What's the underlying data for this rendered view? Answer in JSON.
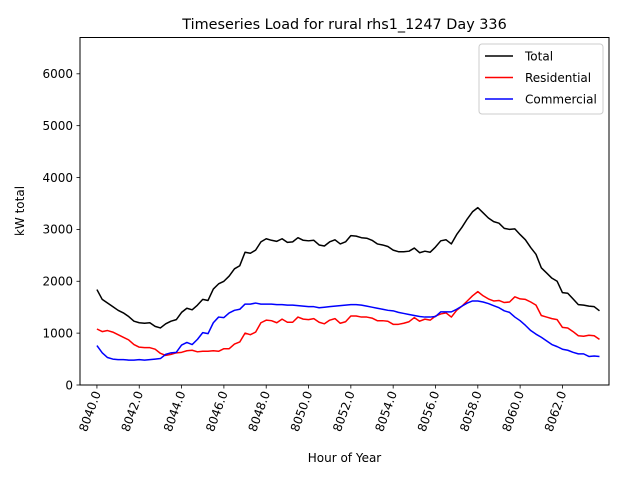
{
  "chart_data": {
    "type": "line",
    "title": "Timeseries Load for rural rhs1_1247   Day 336",
    "xlabel": "Hour of Year",
    "ylabel": "kW total",
    "xlim": [
      8039.2,
      8064.2
    ],
    "ylim": [
      0,
      6700
    ],
    "xticks": [
      8040,
      8042,
      8044,
      8046,
      8048,
      8050,
      8052,
      8054,
      8056,
      8058,
      8060,
      8062
    ],
    "xtick_labels": [
      "8040.0",
      "8042.0",
      "8044.0",
      "8046.0",
      "8048.0",
      "8050.0",
      "8052.0",
      "8054.0",
      "8056.0",
      "8058.0",
      "8060.0",
      "8062.0"
    ],
    "yticks": [
      0,
      1000,
      2000,
      3000,
      4000,
      5000,
      6000
    ],
    "ytick_labels": [
      "0",
      "1000",
      "2000",
      "3000",
      "4000",
      "5000",
      "6000"
    ],
    "grid": false,
    "legend_position": "top-right",
    "x": [
      8040,
      8040.25,
      8040.5,
      8040.75,
      8041,
      8041.25,
      8041.5,
      8041.75,
      8042,
      8042.25,
      8042.5,
      8042.75,
      8043,
      8043.25,
      8043.5,
      8043.75,
      8044,
      8044.25,
      8044.5,
      8044.75,
      8045,
      8045.25,
      8045.5,
      8045.75,
      8046,
      8046.25,
      8046.5,
      8046.75,
      8047,
      8047.25,
      8047.5,
      8047.75,
      8048,
      8048.25,
      8048.5,
      8048.75,
      8049,
      8049.25,
      8049.5,
      8049.75,
      8050,
      8050.25,
      8050.5,
      8050.75,
      8051,
      8051.25,
      8051.5,
      8051.75,
      8052,
      8052.25,
      8052.5,
      8052.75,
      8053,
      8053.25,
      8053.5,
      8053.75,
      8054,
      8054.25,
      8054.5,
      8054.75,
      8055,
      8055.25,
      8055.5,
      8055.75,
      8056,
      8056.25,
      8056.5,
      8056.75,
      8057,
      8057.25,
      8057.5,
      8057.75,
      8058,
      8058.25,
      8058.5,
      8058.75,
      8059,
      8059.25,
      8059.5,
      8059.75,
      8060,
      8060.25,
      8060.5,
      8060.75,
      8061,
      8061.25,
      8061.5,
      8061.75,
      8062,
      8062.25,
      8062.5,
      8062.75,
      8063,
      8063.25,
      8063.5,
      8063.75
    ],
    "series": [
      {
        "name": "Total",
        "color": "#000000",
        "values": [
          1840,
          1650,
          1580,
          1510,
          1440,
          1390,
          1320,
          1230,
          1200,
          1190,
          1200,
          1130,
          1100,
          1180,
          1230,
          1260,
          1400,
          1480,
          1450,
          1540,
          1650,
          1630,
          1850,
          1950,
          2000,
          2100,
          2240,
          2300,
          2560,
          2540,
          2600,
          2760,
          2820,
          2790,
          2770,
          2820,
          2750,
          2760,
          2840,
          2790,
          2780,
          2790,
          2700,
          2680,
          2760,
          2800,
          2720,
          2760,
          2880,
          2870,
          2840,
          2830,
          2790,
          2720,
          2700,
          2670,
          2600,
          2570,
          2570,
          2580,
          2640,
          2550,
          2580,
          2560,
          2660,
          2780,
          2800,
          2720,
          2900,
          3040,
          3200,
          3340,
          3420,
          3320,
          3220,
          3150,
          3120,
          3020,
          3000,
          3010,
          2900,
          2800,
          2650,
          2520,
          2260,
          2160,
          2060,
          2000,
          1780,
          1770,
          1660,
          1550,
          1540,
          1520,
          1510,
          1430
        ]
      },
      {
        "name": "Residential",
        "color": "#ff0000",
        "values": [
          1080,
          1030,
          1050,
          1020,
          970,
          920,
          870,
          780,
          730,
          720,
          720,
          690,
          610,
          570,
          590,
          620,
          630,
          660,
          670,
          640,
          650,
          650,
          660,
          650,
          700,
          700,
          790,
          830,
          1000,
          970,
          1020,
          1200,
          1250,
          1240,
          1200,
          1270,
          1210,
          1210,
          1310,
          1270,
          1260,
          1280,
          1210,
          1180,
          1250,
          1280,
          1190,
          1220,
          1330,
          1330,
          1310,
          1310,
          1290,
          1240,
          1240,
          1230,
          1170,
          1170,
          1190,
          1220,
          1300,
          1230,
          1270,
          1250,
          1330,
          1370,
          1390,
          1310,
          1440,
          1520,
          1620,
          1720,
          1800,
          1720,
          1660,
          1620,
          1630,
          1590,
          1600,
          1700,
          1660,
          1650,
          1600,
          1540,
          1340,
          1310,
          1280,
          1260,
          1110,
          1100,
          1030,
          950,
          940,
          960,
          950,
          880
        ]
      },
      {
        "name": "Commercial",
        "color": "#0000ff",
        "values": [
          760,
          620,
          530,
          500,
          490,
          490,
          480,
          480,
          490,
          480,
          490,
          500,
          510,
          590,
          620,
          630,
          770,
          820,
          780,
          880,
          1010,
          990,
          1200,
          1310,
          1300,
          1390,
          1440,
          1460,
          1560,
          1560,
          1580,
          1560,
          1560,
          1560,
          1550,
          1550,
          1540,
          1540,
          1530,
          1520,
          1510,
          1510,
          1490,
          1500,
          1510,
          1520,
          1530,
          1540,
          1550,
          1550,
          1540,
          1520,
          1500,
          1480,
          1460,
          1440,
          1430,
          1400,
          1380,
          1360,
          1340,
          1320,
          1310,
          1310,
          1320,
          1410,
          1410,
          1410,
          1460,
          1520,
          1580,
          1620,
          1620,
          1600,
          1570,
          1530,
          1490,
          1430,
          1400,
          1310,
          1240,
          1150,
          1050,
          980,
          920,
          850,
          780,
          740,
          690,
          670,
          630,
          600,
          600,
          550,
          560,
          550
        ]
      }
    ]
  }
}
